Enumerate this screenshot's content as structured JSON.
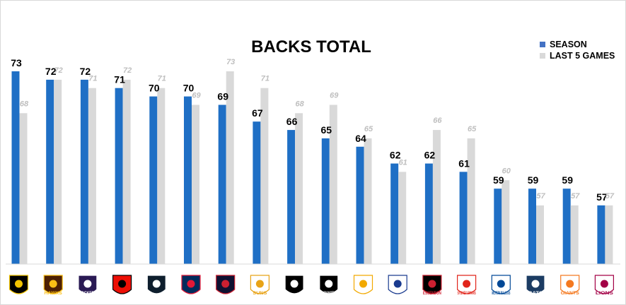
{
  "chart_data": {
    "type": "bar",
    "title": "BACKS TOTAL",
    "legend": {
      "position": "top-right"
    },
    "colors": {
      "season": "#1f6fc5",
      "last5": "#d9d9d9"
    },
    "categories": [
      "Richmond",
      "Hawthorn",
      "Fremantle",
      "St Kilda",
      "Carlton",
      "Adelaide",
      "Melbourne",
      "Gold Coast",
      "Collingwood",
      "Port Adelaide",
      "West Coast",
      "North Melbourne",
      "Essendon",
      "Sydney",
      "Western Bulldogs",
      "Geelong",
      "GWS",
      "Brisbane"
    ],
    "series": [
      {
        "name": "SEASON",
        "values": [
          73,
          72,
          72,
          71,
          70,
          70,
          69,
          67,
          66,
          65,
          64,
          62,
          62,
          61,
          59,
          59,
          59,
          57
        ]
      },
      {
        "name": "LAST 5 GAMES",
        "values": [
          68,
          72,
          71,
          72,
          71,
          69,
          73,
          71,
          68,
          69,
          65,
          61,
          66,
          65,
          60,
          57,
          57,
          57
        ]
      }
    ],
    "ylim": [
      50,
      76
    ],
    "grid": false
  },
  "logos": [
    {
      "name": "richmond-logo",
      "icon": "tiger-icon",
      "text": "",
      "bg": "#000000",
      "fg": "#f2c300"
    },
    {
      "name": "hawthorn-logo",
      "icon": "hawk-icon",
      "text": "HAWKS",
      "bg": "#4d2004",
      "fg": "#fbbf15"
    },
    {
      "name": "fremantle-logo",
      "icon": "anchor-icon",
      "text": "DOCKERS",
      "bg": "#2a1a54",
      "fg": "#ffffff"
    },
    {
      "name": "stkilda-logo",
      "icon": "cross-icon",
      "text": "",
      "bg": "#ed0f05",
      "fg": "#000000"
    },
    {
      "name": "carlton-logo",
      "icon": "cfc-monogram-icon",
      "text": "",
      "bg": "#0e1e2d",
      "fg": "#ffffff"
    },
    {
      "name": "adelaide-logo",
      "icon": "crow-icon",
      "text": "",
      "bg": "#002b5c",
      "fg": "#e21937"
    },
    {
      "name": "melbourne-logo",
      "icon": "demon-icon",
      "text": "",
      "bg": "#0f1131",
      "fg": "#cc2031"
    },
    {
      "name": "goldcoast-logo",
      "icon": "sun-icon",
      "text": "SUNS",
      "bg": "#ffffff",
      "fg": "#e8a317"
    },
    {
      "name": "collingwood-logo",
      "icon": "magpie-icon",
      "text": "",
      "bg": "#000000",
      "fg": "#ffffff"
    },
    {
      "name": "portadelaide-logo",
      "icon": "power-icon",
      "text": "POWER",
      "bg": "#000000",
      "fg": "#ffffff"
    },
    {
      "name": "westcoast-logo",
      "icon": "eagle-icon",
      "text": "",
      "bg": "#ffffff",
      "fg": "#f2a900"
    },
    {
      "name": "northmelbourne-logo",
      "icon": "kangaroo-icon",
      "text": "",
      "bg": "#ffffff",
      "fg": "#1a3b8f"
    },
    {
      "name": "essendon-logo",
      "icon": "bomber-icon",
      "text": "ESSENDON",
      "bg": "#000000",
      "fg": "#cc2031"
    },
    {
      "name": "sydney-logo",
      "icon": "swan-icon",
      "text": "SYDNEY SWANS",
      "bg": "#ffffff",
      "fg": "#e1251b"
    },
    {
      "name": "westernbulldogs-logo",
      "icon": "bulldog-icon",
      "text": "WESTERN BULLDOGS",
      "bg": "#ffffff",
      "fg": "#014896"
    },
    {
      "name": "geelong-logo",
      "icon": "cat-icon",
      "text": "CATS",
      "bg": "#1c3c63",
      "fg": "#ffffff"
    },
    {
      "name": "gws-logo",
      "icon": "gws-icon",
      "text": "GIANTS",
      "bg": "#ffffff",
      "fg": "#f47920"
    },
    {
      "name": "brisbane-logo",
      "icon": "lion-icon",
      "text": "LIONS",
      "bg": "#ffffff",
      "fg": "#a30046"
    }
  ]
}
